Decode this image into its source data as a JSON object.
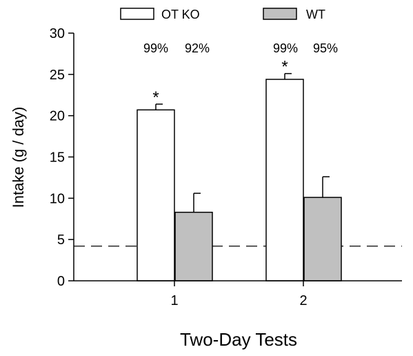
{
  "chart_data": {
    "type": "bar",
    "xlabel": "Two-Day Tests",
    "ylabel": "Intake (g / day)",
    "ylim": [
      0,
      30
    ],
    "yticks": [
      0,
      5,
      10,
      15,
      20,
      25,
      30
    ],
    "categories": [
      "1",
      "2"
    ],
    "series": [
      {
        "name": "OT KO",
        "values": [
          20.7,
          24.4
        ],
        "errors": [
          0.7,
          0.7
        ],
        "color": "#ffffff"
      },
      {
        "name": "WT",
        "values": [
          8.3,
          10.1
        ],
        "errors": [
          2.3,
          2.5
        ],
        "color": "#c0c0c0"
      }
    ],
    "percent_labels": [
      [
        "99%",
        "92%"
      ],
      [
        "99%",
        "95%"
      ]
    ],
    "significance": [
      "*",
      "*"
    ],
    "reference_line": {
      "value": 4.2,
      "style": "dashed"
    },
    "legend_position": "top",
    "grid": false
  }
}
